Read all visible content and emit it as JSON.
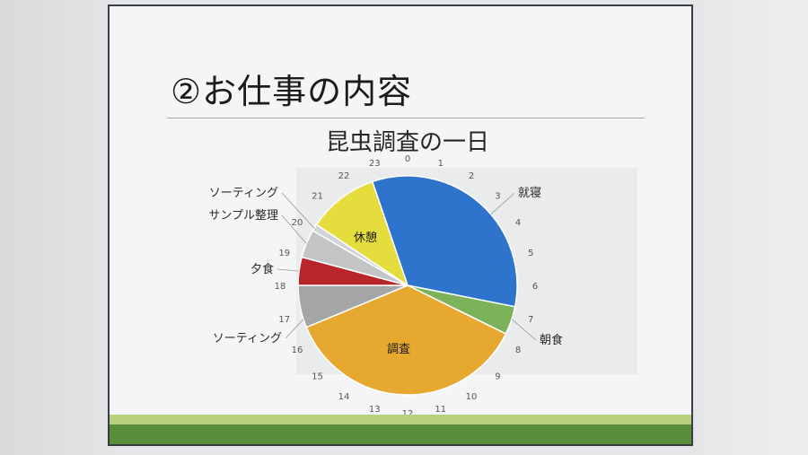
{
  "slide": {
    "title": "②お仕事の内容"
  },
  "chart_data": {
    "type": "pie",
    "title": "昆虫調査の一日",
    "hour_ticks": [
      "0",
      "1",
      "2",
      "3",
      "4",
      "5",
      "6",
      "7",
      "8",
      "9",
      "10",
      "11",
      "12",
      "13",
      "14",
      "15",
      "16",
      "17",
      "18",
      "19",
      "20",
      "21",
      "22",
      "23"
    ],
    "slices": [
      {
        "label": "就寝",
        "start": 22.75,
        "end": 6.75,
        "color": "#2f74cc",
        "label_position": "outside"
      },
      {
        "label": "朝食",
        "start": 6.75,
        "end": 7.75,
        "color": "#7cb35a",
        "label_position": "outside"
      },
      {
        "label": "調査",
        "start": 7.75,
        "end": 16.5,
        "color": "#e7a830",
        "label_position": "inside"
      },
      {
        "label": "ソーティング",
        "start": 16.5,
        "end": 18,
        "color": "#a4a5a6",
        "label_position": "outside"
      },
      {
        "label": "夕食",
        "start": 18,
        "end": 19,
        "color": "#b8262a",
        "label_position": "outside"
      },
      {
        "label": "サンプル整理",
        "start": 19,
        "end": 20,
        "color": "#c3c4c6",
        "label_position": "outside"
      },
      {
        "label": "ソーティング",
        "start": 20,
        "end": 20.25,
        "color": "#d2d3d5",
        "label_position": "outside"
      },
      {
        "label": "休憩",
        "start": 20.25,
        "end": 22.75,
        "color": "#e5dc3d",
        "label_position": "inside"
      }
    ]
  }
}
